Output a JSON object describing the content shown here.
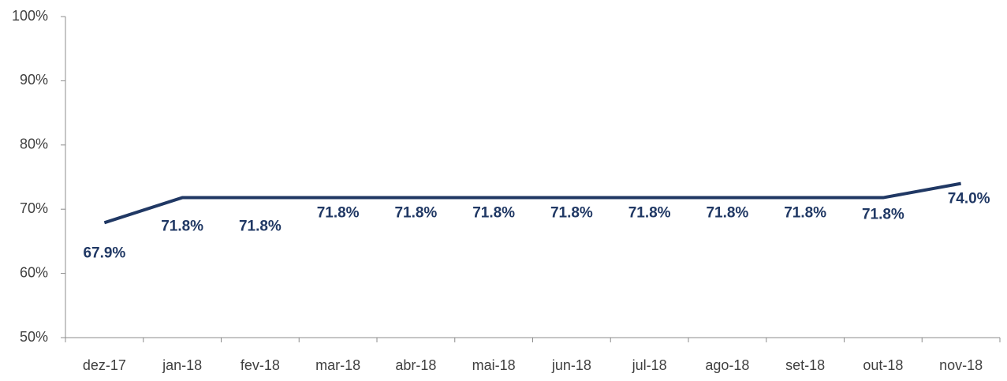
{
  "chart_data": {
    "type": "line",
    "categories": [
      "dez-17",
      "jan-18",
      "fev-18",
      "mar-18",
      "abr-18",
      "mai-18",
      "jun-18",
      "jul-18",
      "ago-18",
      "set-18",
      "out-18",
      "nov-18"
    ],
    "series": [
      {
        "color": "#203864",
        "values": [
          67.9,
          71.8,
          71.8,
          71.8,
          71.8,
          71.8,
          71.8,
          71.8,
          71.8,
          71.8,
          71.8,
          74.0
        ],
        "value_labels": [
          "67.9%",
          "71.8%",
          "71.8%",
          "71.8%",
          "71.8%",
          "71.8%",
          "71.8%",
          "71.8%",
          "71.8%",
          "71.8%",
          "71.8%",
          "74.0%"
        ]
      }
    ],
    "ylim": [
      50,
      100
    ],
    "yticks": [
      {
        "value": 50,
        "label": "50%"
      },
      {
        "value": 60,
        "label": "60%"
      },
      {
        "value": 70,
        "label": "70%"
      },
      {
        "value": 80,
        "label": "80%"
      },
      {
        "value": 90,
        "label": "90%"
      },
      {
        "value": 100,
        "label": "100%"
      }
    ],
    "grid": false
  }
}
